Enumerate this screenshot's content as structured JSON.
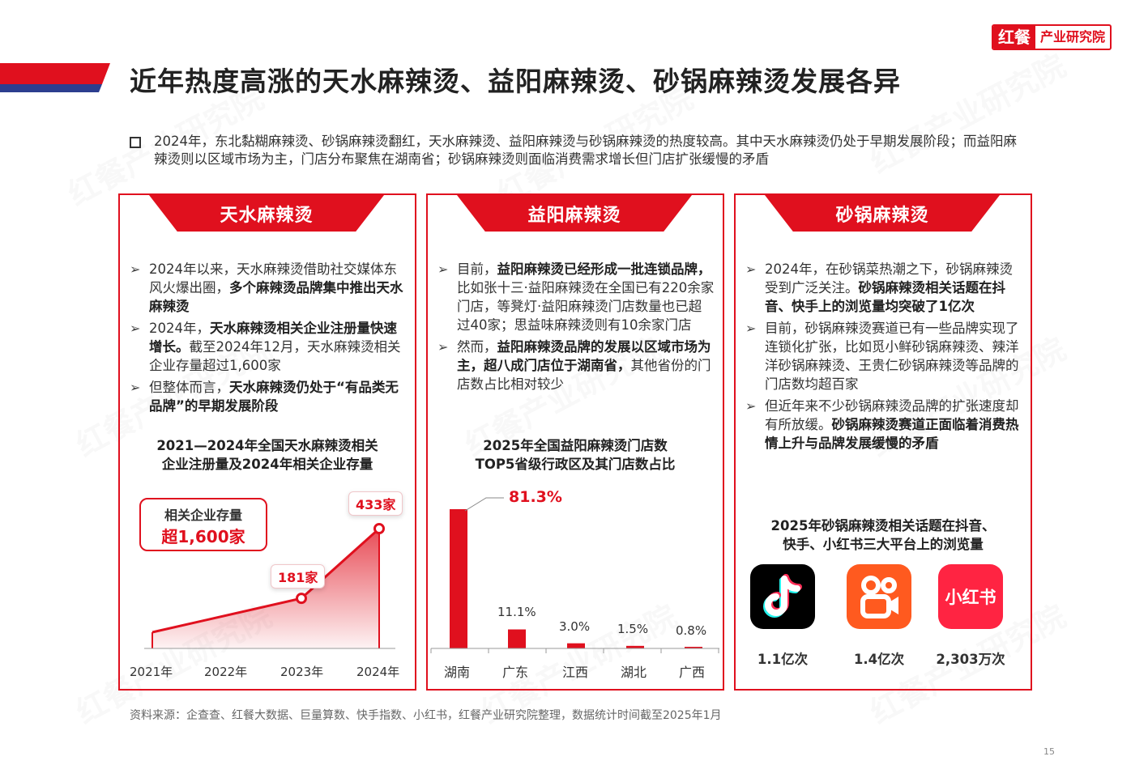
{
  "brand": {
    "logo_left": "红餐",
    "logo_right": "产业研究院",
    "watermark": "红餐产业研究院"
  },
  "title": "近年热度高涨的天水麻辣烫、益阳麻辣烫、砂锅麻辣烫发展各异",
  "summary": "2024年，东北黏糊麻辣烫、砂锅麻辣烫翻红，天水麻辣烫、益阳麻辣烫与砂锅麻辣烫的热度较高。其中天水麻辣烫仍处于早期发展阶段；而益阳麻辣烫则以区域市场为主，门店分布聚焦在湖南省；砂锅麻辣烫则面临消费需求增长但门店扩张缓慢的矛盾",
  "panels": [
    {
      "tag": "天水麻辣烫",
      "bullets": [
        [
          {
            "t": "2024年以来，天水麻辣烫借助社交媒体东风火爆出圈，"
          },
          {
            "t": "多个麻辣烫品牌集中推出天水麻辣烫",
            "b": true
          }
        ],
        [
          {
            "t": "2024年，"
          },
          {
            "t": "天水麻辣烫相关企业注册量快速增长。",
            "b": true
          },
          {
            "t": "截至2024年12月，天水麻辣烫相关企业存量超过1,600家"
          }
        ],
        [
          {
            "t": "但整体而言，"
          },
          {
            "t": "天水麻辣烫仍处于“有品类无品牌”的早期发展阶段",
            "b": true
          }
        ]
      ],
      "chart_title_1": "2021—2024年全国天水麻辣烫相关",
      "chart_title_2": "企业注册量及2024年相关企业存量",
      "stock_label": "相关企业存量",
      "stock_value": "超1,600家"
    },
    {
      "tag": "益阳麻辣烫",
      "bullets": [
        [
          {
            "t": "目前，"
          },
          {
            "t": "益阳麻辣烫已经形成一批连锁品牌，",
            "b": true
          },
          {
            "t": "比如张十三·益阳麻辣烫在全国已有220余家门店，等凳灯·益阳麻辣烫门店数量也已超过40家；思益味麻辣烫则有10余家门店"
          }
        ],
        [
          {
            "t": "然而，"
          },
          {
            "t": "益阳麻辣烫品牌的发展以区域市场为主，超八成门店位于湖南省，",
            "b": true
          },
          {
            "t": "其他省份的门店数占比相对较少"
          }
        ]
      ],
      "chart_title_1": "2025年全国益阳麻辣烫门店数",
      "chart_title_2": "TOP5省级行政区及其门店数占比"
    },
    {
      "tag": "砂锅麻辣烫",
      "bullets": [
        [
          {
            "t": "2024年，在砂锅菜热潮之下，砂锅麻辣烫受到广泛关注。"
          },
          {
            "t": "砂锅麻辣烫相关话题在抖音、快手上的浏览量均突破了1亿次",
            "b": true
          }
        ],
        [
          {
            "t": "目前，砂锅麻辣烫赛道已有一些品牌实现了连锁化扩张，比如觅小鲜砂锅麻辣烫、辣洋洋砂锅麻辣烫、王贵仁砂锅麻辣烫等品牌的门店数均超百家"
          }
        ],
        [
          {
            "t": "但近年来不少砂锅麻辣烫品牌的扩张速度却有所放缓。"
          },
          {
            "t": "砂锅麻辣烫赛道正面临着消费热情上升与品牌发展缓慢的矛盾",
            "b": true
          }
        ]
      ],
      "chart_title_1": "2025年砂锅麻辣烫相关话题在抖音、",
      "chart_title_2": "快手、小红书三大平台上的浏览量"
    }
  ],
  "chart_data": [
    {
      "type": "area",
      "categories": [
        "2021年",
        "2022年",
        "2023年",
        "2024年"
      ],
      "values": [
        null,
        null,
        181,
        433
      ],
      "value_labels": [
        "",
        "",
        "181家",
        "433家"
      ],
      "annotation": "相关企业存量 超1,600家",
      "colors": {
        "line": "#e0101e"
      }
    },
    {
      "type": "bar",
      "categories": [
        "湖南",
        "广东",
        "江西",
        "湖北",
        "广西"
      ],
      "values": [
        81.3,
        11.1,
        3.0,
        1.5,
        0.8
      ],
      "value_labels": [
        "81.3%",
        "11.1%",
        "3.0%",
        "1.5%",
        "0.8%"
      ],
      "ylim": [
        0,
        100
      ],
      "colors": {
        "bar": "#e0101e"
      }
    },
    {
      "type": "table",
      "platforms": [
        {
          "icon": "douyin-icon",
          "value": "1.1亿次",
          "color": "#000000"
        },
        {
          "icon": "kuaishou-icon",
          "value": "1.4亿次",
          "color": "#ff5a1f"
        },
        {
          "icon": "xiaohongshu-icon",
          "value": "2,303万次",
          "color": "#ff2442",
          "icon_text": "小红书"
        }
      ]
    }
  ],
  "source": "资料来源：企查查、红餐大数据、巨量算数、快手指数、小红书，红餐产业研究院整理，数据统计时间截至2025年1月",
  "page_number": "15"
}
